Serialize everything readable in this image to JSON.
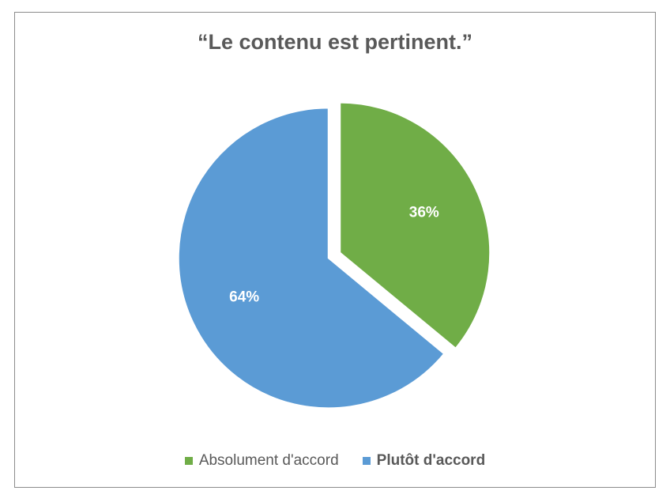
{
  "chart_data": {
    "type": "pie",
    "title": "“Le contenu est pertinent.”",
    "categories": [
      "Absolument d'accord",
      "Plutôt d'accord"
    ],
    "values": [
      36,
      64
    ],
    "labels": [
      "36%",
      "64%"
    ],
    "colors": [
      "#70ad47",
      "#5b9bd5"
    ],
    "legend_position": "bottom"
  }
}
